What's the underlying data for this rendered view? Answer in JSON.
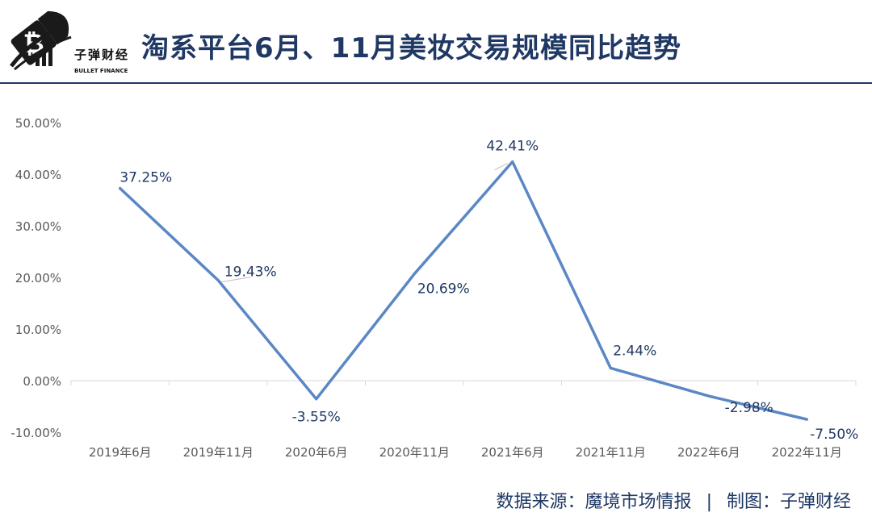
{
  "brand": {
    "name_cn": "子弹财经",
    "name_en": "BULLET FINANCE",
    "logo_icon": "bitcoin-bullet-icon",
    "accent": "#1f3864"
  },
  "title": "淘系平台6月、11月美妆交易规模同比趋势",
  "footer": {
    "source": "数据来源：魔境市场情报",
    "separator": "|",
    "credit": "制图：子弹财经"
  },
  "chart_data": {
    "type": "line",
    "categories": [
      "2019年6月",
      "2019年11月",
      "2020年6月",
      "2020年11月",
      "2021年6月",
      "2021年11月",
      "2022年6月",
      "2022年11月"
    ],
    "values": [
      37.25,
      19.43,
      -3.55,
      20.69,
      42.41,
      2.44,
      -2.98,
      -7.5
    ],
    "data_labels": [
      "37.25%",
      "19.43%",
      "-3.55%",
      "20.69%",
      "42.41%",
      "2.44%",
      "-2.98%",
      "-7.50%"
    ],
    "ylim": [
      -10,
      50
    ],
    "y_ticks": [
      50,
      40,
      30,
      20,
      10,
      0,
      -10
    ],
    "y_tick_labels": [
      "50.00%",
      "40.00%",
      "30.00%",
      "20.00%",
      "10.00%",
      "0.00%",
      "-10.00%"
    ],
    "grid": false,
    "line_color": "#5b87c5",
    "label_color": "#1f3864",
    "xlabel": "",
    "ylabel": ""
  }
}
